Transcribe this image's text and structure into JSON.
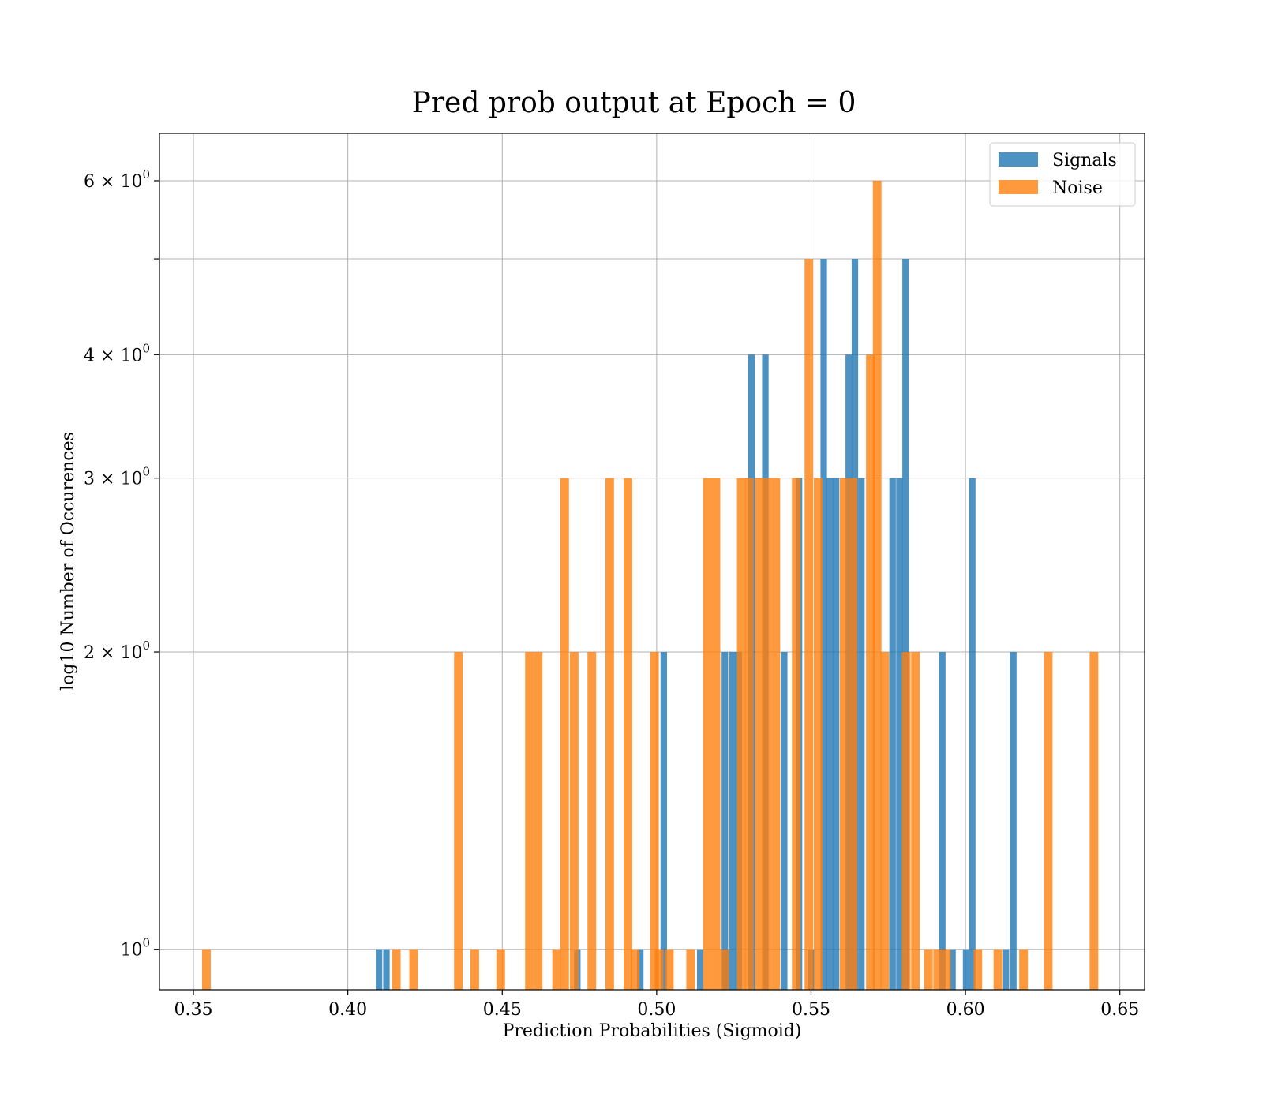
{
  "chart_data": {
    "type": "bar",
    "title": "Pred prob output at Epoch = 0",
    "xlabel": "Prediction Probabilities (Sigmoid)",
    "ylabel": "log10 Number of Occurences",
    "y_scale": "log",
    "xlim": [
      0.339,
      0.658
    ],
    "ylim": [
      0.91,
      6.7
    ],
    "grid": true,
    "legend_position": "top-right",
    "x_ticks": [
      {
        "value": 0.35,
        "label": "0.35"
      },
      {
        "value": 0.4,
        "label": "0.40"
      },
      {
        "value": 0.45,
        "label": "0.45"
      },
      {
        "value": 0.5,
        "label": "0.50"
      },
      {
        "value": 0.55,
        "label": "0.55"
      },
      {
        "value": 0.6,
        "label": "0.60"
      },
      {
        "value": 0.65,
        "label": "0.65"
      }
    ],
    "y_ticks": [
      {
        "value": 1,
        "base": "10",
        "exp": "0"
      },
      {
        "value": 2,
        "base": "2 × 10",
        "exp": "0"
      },
      {
        "value": 3,
        "base": "3 × 10",
        "exp": "0"
      },
      {
        "value": 4,
        "base": "4 × 10",
        "exp": "0"
      },
      {
        "value": 5,
        "base": "",
        "exp": ""
      },
      {
        "value": 6,
        "base": "6 × 10",
        "exp": "0"
      }
    ],
    "series": [
      {
        "name": "Signals",
        "color": "#1f77b4",
        "bin_width": 0.0021,
        "bars": [
          [
            0.4101,
            1
          ],
          [
            0.4125,
            1
          ],
          [
            0.4743,
            1
          ],
          [
            0.4947,
            1
          ],
          [
            0.5023,
            2
          ],
          [
            0.5141,
            1
          ],
          [
            0.5221,
            2
          ],
          [
            0.5225,
            1
          ],
          [
            0.5246,
            2
          ],
          [
            0.5266,
            2
          ],
          [
            0.5307,
            4
          ],
          [
            0.5352,
            4
          ],
          [
            0.5413,
            2
          ],
          [
            0.5461,
            3
          ],
          [
            0.55,
            1
          ],
          [
            0.5541,
            5
          ],
          [
            0.5561,
            3
          ],
          [
            0.5581,
            3
          ],
          [
            0.5622,
            4
          ],
          [
            0.5642,
            5
          ],
          [
            0.5663,
            3
          ],
          [
            0.5764,
            3
          ],
          [
            0.5786,
            3
          ],
          [
            0.5806,
            5
          ],
          [
            0.5925,
            2
          ],
          [
            0.5958,
            1
          ],
          [
            0.6002,
            1
          ],
          [
            0.6022,
            3
          ],
          [
            0.6131,
            1
          ],
          [
            0.6155,
            2
          ]
        ]
      },
      {
        "name": "Noise",
        "color": "#ff7f0e",
        "bin_width": 0.0028,
        "bars": [
          [
            0.3542,
            1
          ],
          [
            0.4157,
            1
          ],
          [
            0.4213,
            1
          ],
          [
            0.4358,
            2
          ],
          [
            0.4411,
            1
          ],
          [
            0.4495,
            1
          ],
          [
            0.4588,
            2
          ],
          [
            0.4616,
            2
          ],
          [
            0.4676,
            1
          ],
          [
            0.4702,
            3
          ],
          [
            0.4733,
            2
          ],
          [
            0.479,
            2
          ],
          [
            0.4848,
            3
          ],
          [
            0.4907,
            3
          ],
          [
            0.493,
            1
          ],
          [
            0.4993,
            2
          ],
          [
            0.5008,
            1
          ],
          [
            0.5041,
            1
          ],
          [
            0.511,
            1
          ],
          [
            0.5164,
            3
          ],
          [
            0.5192,
            3
          ],
          [
            0.522,
            1
          ],
          [
            0.5274,
            3
          ],
          [
            0.53,
            3
          ],
          [
            0.5333,
            3
          ],
          [
            0.5358,
            3
          ],
          [
            0.5386,
            3
          ],
          [
            0.5452,
            3
          ],
          [
            0.5493,
            5
          ],
          [
            0.5523,
            3
          ],
          [
            0.5607,
            3
          ],
          [
            0.5636,
            3
          ],
          [
            0.5692,
            4
          ],
          [
            0.5714,
            6
          ],
          [
            0.5739,
            2
          ],
          [
            0.5808,
            2
          ],
          [
            0.5838,
            2
          ],
          [
            0.588,
            1
          ],
          [
            0.591,
            1
          ],
          [
            0.5938,
            1
          ],
          [
            0.604,
            1
          ],
          [
            0.6105,
            1
          ],
          [
            0.6188,
            1
          ],
          [
            0.6268,
            2
          ],
          [
            0.6416,
            2
          ]
        ]
      }
    ],
    "legend": [
      {
        "name": "Signals",
        "color": "#1f77b4"
      },
      {
        "name": "Noise",
        "color": "#ff7f0e"
      }
    ]
  }
}
